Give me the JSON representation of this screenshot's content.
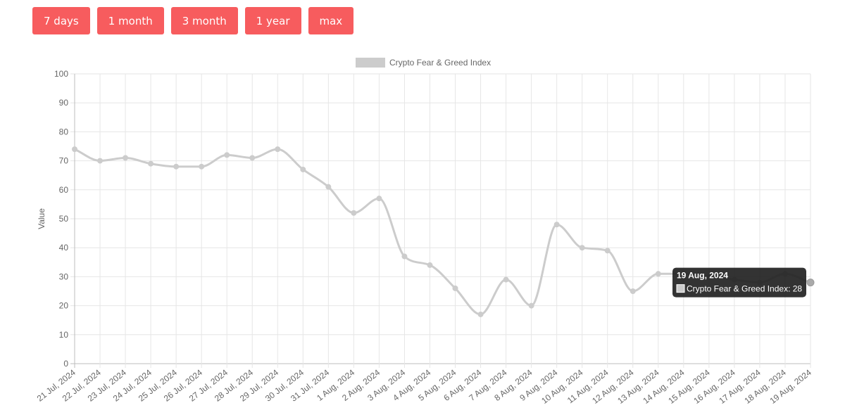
{
  "range_buttons": [
    {
      "label": "7 days"
    },
    {
      "label": "1 month"
    },
    {
      "label": "3 month"
    },
    {
      "label": "1 year"
    },
    {
      "label": "max"
    }
  ],
  "colors": {
    "button_bg": "#f75c5e",
    "series_line": "#cccccc",
    "grid": "#e6e6e6",
    "tooltip_bg": "#222222"
  },
  "tooltip": {
    "title": "19 Aug, 2024",
    "body": "Crypto Fear & Greed Index: 28"
  },
  "chart_data": {
    "type": "line",
    "ylabel": "Value",
    "ylim": [
      0,
      100
    ],
    "y_ticks": [
      0,
      10,
      20,
      30,
      40,
      50,
      60,
      70,
      80,
      90,
      100
    ],
    "grid": true,
    "legend_position": "top",
    "categories": [
      "21 Jul, 2024",
      "22 Jul, 2024",
      "23 Jul, 2024",
      "24 Jul, 2024",
      "25 Jul, 2024",
      "26 Jul, 2024",
      "27 Jul, 2024",
      "28 Jul, 2024",
      "29 Jul, 2024",
      "30 Jul, 2024",
      "31 Jul, 2024",
      "1 Aug, 2024",
      "2 Aug, 2024",
      "3 Aug, 2024",
      "4 Aug, 2024",
      "5 Aug, 2024",
      "6 Aug, 2024",
      "7 Aug, 2024",
      "8 Aug, 2024",
      "9 Aug, 2024",
      "10 Aug, 2024",
      "11 Aug, 2024",
      "12 Aug, 2024",
      "13 Aug, 2024",
      "14 Aug, 2024",
      "15 Aug, 2024",
      "16 Aug, 2024",
      "17 Aug, 2024",
      "18 Aug, 2024",
      "19 Aug, 2024"
    ],
    "series": [
      {
        "name": "Crypto Fear & Greed Index",
        "values": [
          74,
          70,
          71,
          69,
          68,
          68,
          72,
          71,
          74,
          67,
          61,
          52,
          57,
          37,
          34,
          26,
          17,
          29,
          20,
          48,
          40,
          39,
          25,
          31,
          31,
          30,
          29,
          28,
          31,
          28
        ]
      }
    ]
  }
}
